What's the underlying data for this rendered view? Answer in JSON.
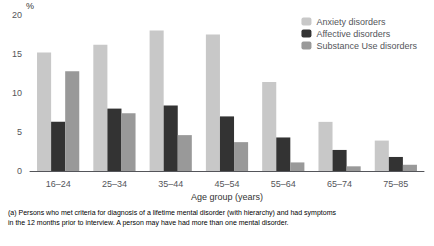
{
  "chart_data": {
    "type": "bar",
    "xlabel": "Age group (years)",
    "ylabel": "%",
    "categories": [
      "16–24",
      "25–34",
      "35–44",
      "45–54",
      "55–64",
      "65–74",
      "75–85"
    ],
    "series": [
      {
        "name": "Anxiety disorders",
        "color": "#c8c8c8",
        "values": [
          15.2,
          16.2,
          18.0,
          17.5,
          11.4,
          6.3,
          3.9
        ]
      },
      {
        "name": "Affective disorders",
        "color": "#333333",
        "values": [
          6.3,
          8.0,
          8.4,
          7.0,
          4.3,
          2.7,
          1.8
        ]
      },
      {
        "name": "Substance Use disorders",
        "color": "#999999",
        "values": [
          12.8,
          7.4,
          4.6,
          3.7,
          1.1,
          0.6,
          0.8
        ]
      }
    ],
    "ylim": [
      0,
      20
    ],
    "yticks": [
      0,
      5,
      10,
      15,
      20
    ],
    "grid": false,
    "legend": "upper right",
    "annotations": [
      "(a) Persons who met criteria for diagnosis of a lifetime mental disorder (with hierarchy) and had symptoms\nin the 12 months prior to interview. A person may have had more than one mental disorder."
    ]
  }
}
